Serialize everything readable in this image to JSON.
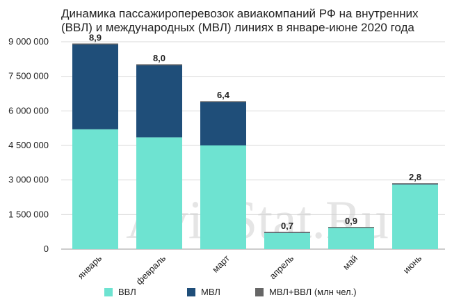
{
  "chart_data": {
    "type": "bar",
    "stacked": true,
    "title": "Динамика пассажироперевозок авиакомпаний РФ на внутренних (ВВЛ) и международных (МВЛ) линиях в январе-июне 2020 года",
    "categories": [
      "январь",
      "февраль",
      "март",
      "апрель",
      "май",
      "июнь"
    ],
    "series": [
      {
        "name": "ВВЛ",
        "color": "#6ee3d1",
        "values": [
          5200000,
          4850000,
          4500000,
          700000,
          930000,
          2800000
        ]
      },
      {
        "name": "МВЛ",
        "color": "#1f4e79",
        "values": [
          3700000,
          3150000,
          1900000,
          30000,
          10000,
          40000
        ]
      }
    ],
    "total_series": {
      "name": "МВЛ+ВВЛ (млн чел.)",
      "color": "#666666"
    },
    "data_labels": [
      "8,9",
      "8,0",
      "6,4",
      "0,7",
      "0,9",
      "2,8"
    ],
    "ylim": [
      0,
      9000000
    ],
    "yticks": [
      0,
      1500000,
      3000000,
      4500000,
      6000000,
      7500000,
      9000000
    ],
    "ytick_labels": [
      "0",
      "1 500 000",
      "3 000 000",
      "4 500 000",
      "6 000 000",
      "7 500 000",
      "9 000 000"
    ],
    "grid": true,
    "legend_position": "bottom",
    "xlabel": "",
    "ylabel": ""
  },
  "watermark": "AviaStat.Ru",
  "colors": {
    "grid": "#d9d9d9",
    "axis": "#999999",
    "text": "#222222",
    "watermark": "#d0d0d0"
  }
}
